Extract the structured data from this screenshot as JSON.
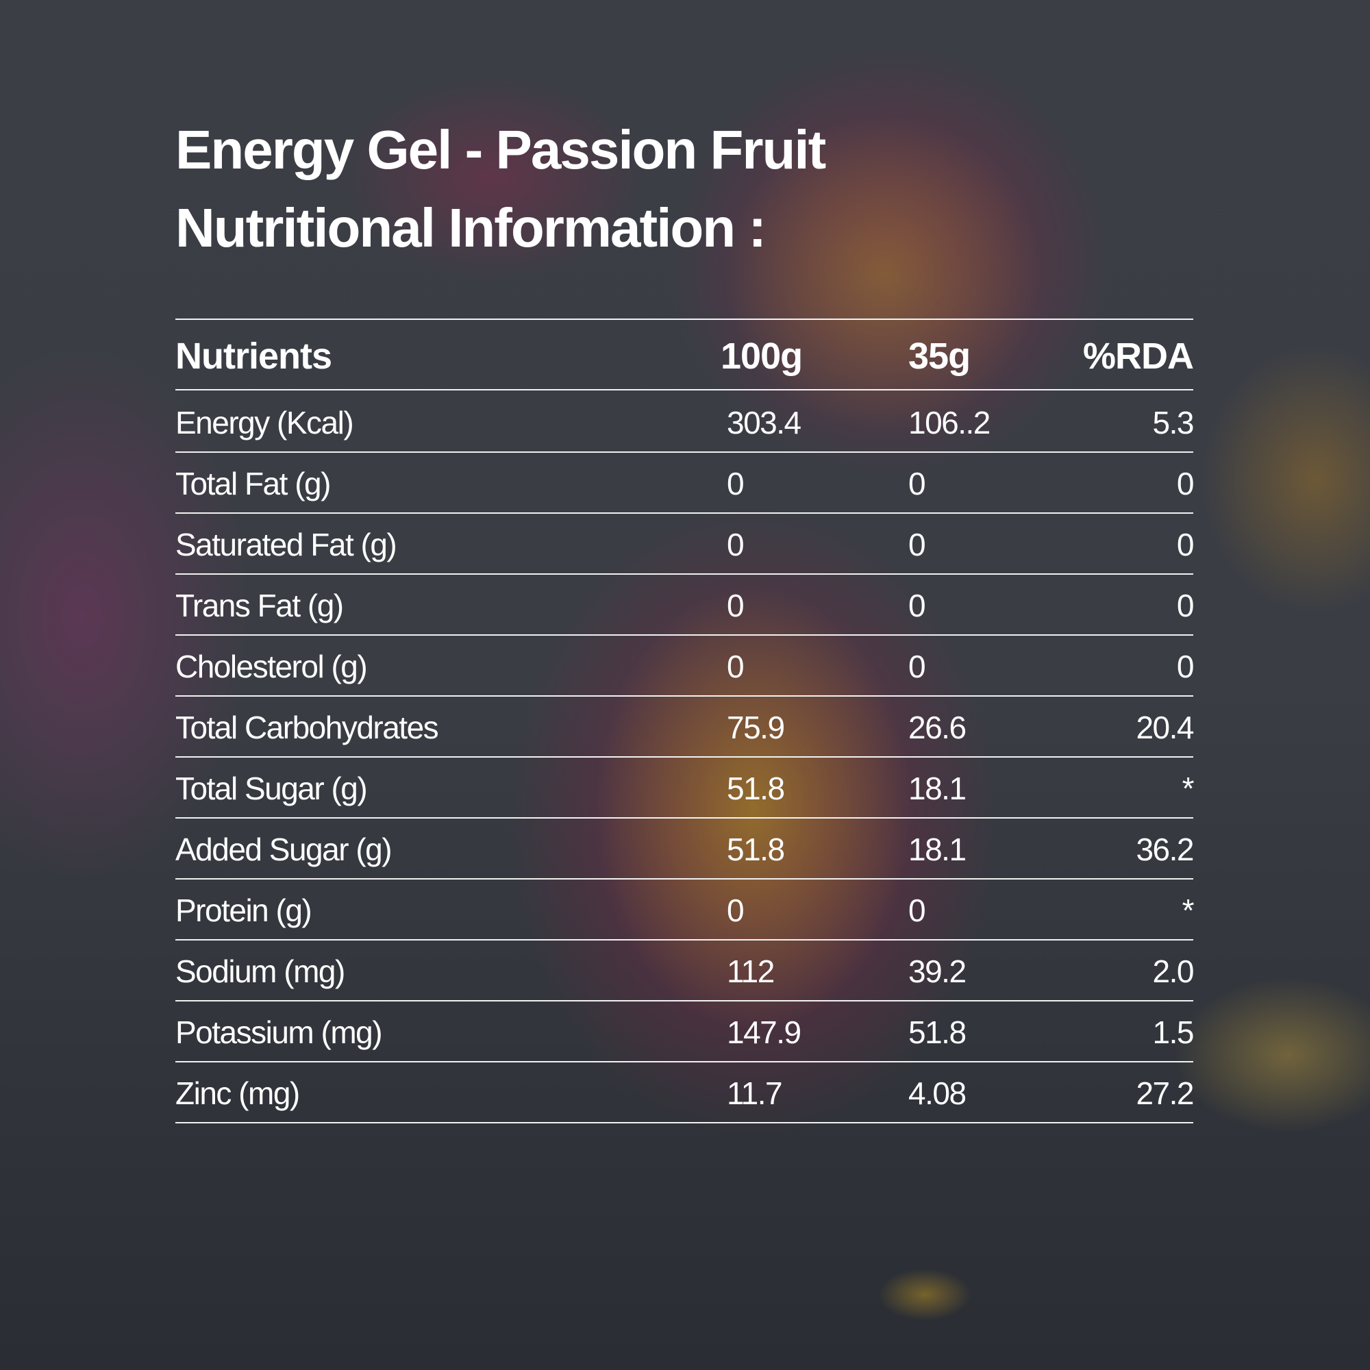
{
  "title": {
    "line1": "Energy Gel - Passion Fruit",
    "line2": "Nutritional Information :"
  },
  "table": {
    "headers": [
      "Nutrients",
      "100g",
      "35g",
      "%RDA"
    ],
    "rows": [
      {
        "nutrient": "Energy (Kcal)",
        "per100g": "303.4",
        "per35g": "106..2",
        "rda": "5.3"
      },
      {
        "nutrient": "Total Fat (g)",
        "per100g": "0",
        "per35g": "0",
        "rda": "0"
      },
      {
        "nutrient": "Saturated Fat (g)",
        "per100g": "0",
        "per35g": "0",
        "rda": "0"
      },
      {
        "nutrient": "Trans Fat (g)",
        "per100g": "0",
        "per35g": "0",
        "rda": "0"
      },
      {
        "nutrient": "Cholesterol (g)",
        "per100g": "0",
        "per35g": "0",
        "rda": "0"
      },
      {
        "nutrient": "Total Carbohydrates",
        "per100g": "75.9",
        "per35g": "26.6",
        "rda": "20.4"
      },
      {
        "nutrient": "Total Sugar (g)",
        "per100g": "51.8",
        "per35g": "18.1",
        "rda": "*"
      },
      {
        "nutrient": "Added Sugar (g)",
        "per100g": "51.8",
        "per35g": "18.1",
        "rda": "36.2"
      },
      {
        "nutrient": "Protein (g)",
        "per100g": "0",
        "per35g": "0",
        "rda": "*"
      },
      {
        "nutrient": "Sodium (mg)",
        "per100g": "112",
        "per35g": "39.2",
        "rda": "2.0"
      },
      {
        "nutrient": "Potassium (mg)",
        "per100g": "147.9",
        "per35g": "51.8",
        "rda": "1.5"
      },
      {
        "nutrient": "Zinc (mg)",
        "per100g": "11.7",
        "per35g": "4.08",
        "rda": "27.2"
      }
    ]
  }
}
